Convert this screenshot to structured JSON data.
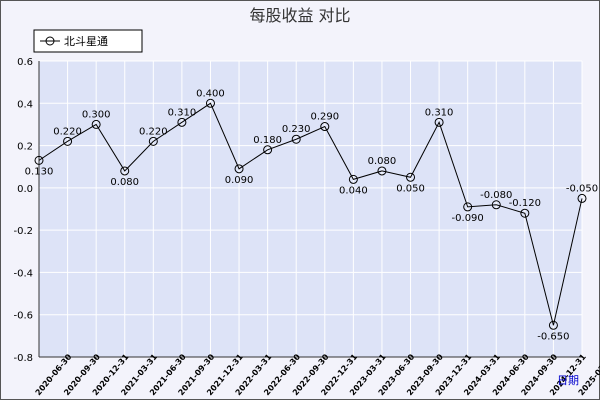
{
  "chart_data": {
    "type": "line",
    "title": "每股收益  对比",
    "x_period_label": "日期",
    "categories": [
      "2020-06-30",
      "2020-09-30",
      "2020-12-31",
      "2021-03-31",
      "2021-06-30",
      "2021-09-30",
      "2021-12-31",
      "2022-03-31",
      "2022-06-30",
      "2022-09-30",
      "2022-12-31",
      "2023-03-31",
      "2023-06-30",
      "2023-09-30",
      "2023-12-31",
      "2024-03-31",
      "2024-06-30",
      "2024-09-30",
      "2024-12-31",
      "2025-03-31"
    ],
    "series": [
      {
        "name": "北斗星通",
        "values": [
          0.13,
          0.22,
          0.3,
          0.08,
          0.22,
          0.31,
          0.4,
          0.09,
          0.18,
          0.23,
          0.29,
          0.04,
          0.08,
          0.05,
          0.31,
          -0.09,
          -0.08,
          -0.12,
          -0.65,
          -0.05
        ],
        "labels": [
          "0.130",
          "0.220",
          "0.300",
          "0.080",
          "0.220",
          "0.310",
          "0.400",
          "0.090",
          "0.180",
          "0.230",
          "0.290",
          "0.040",
          "0.080",
          "0.050",
          "0.310",
          "-0.090",
          "-0.080",
          "-0.120",
          "-0.650",
          "-0.050"
        ]
      }
    ],
    "ylim": [
      -0.8,
      0.6
    ],
    "yticks": [
      "0.6",
      "0.4",
      "0.2",
      "0.0",
      "-0.2",
      "-0.4",
      "-0.6",
      "-0.8"
    ],
    "ytick_values": [
      0.6,
      0.4,
      0.2,
      0.0,
      -0.2,
      -0.4,
      -0.6,
      -0.8
    ],
    "grid": true,
    "legend_position": "top-left",
    "colors": {
      "plot_bg": "#dde3f7",
      "grid": "#ffffff",
      "line": "#000000",
      "frame_bg": "#f3f3fb"
    }
  }
}
